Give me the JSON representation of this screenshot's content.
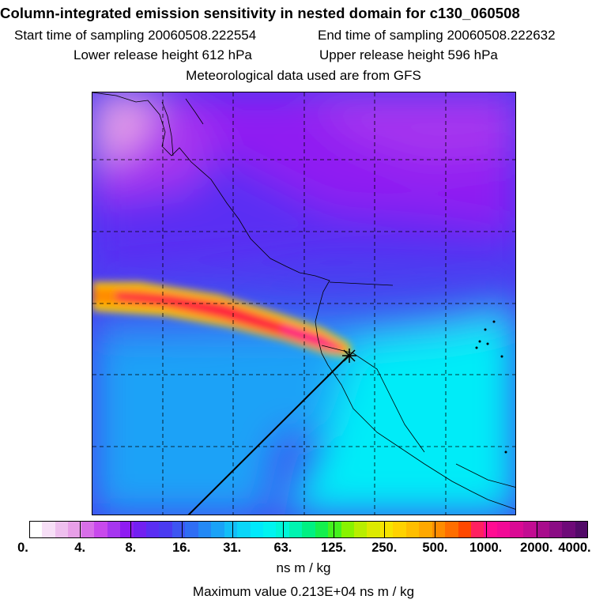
{
  "title": "Column-integrated emission sensitivity in nested domain for c130_060508",
  "sampling": {
    "start": "Start time of sampling 20060508.222554",
    "end": "End time of sampling 20060508.222632"
  },
  "release": {
    "lower": "Lower release height  612 hPa",
    "upper": "Upper release height  596 hPa"
  },
  "met_note": "Meteorological data used are from GFS",
  "colorbar": {
    "tick_labels": [
      "0.",
      "4.",
      "8.",
      "16.",
      "31.",
      "63.",
      "125.",
      "250.",
      "500.",
      "1000.",
      "2000.",
      "4000."
    ],
    "colors": [
      "#ffffff",
      "#f7dff7",
      "#eebfee",
      "#e79fe7",
      "#d86fe8",
      "#c849ec",
      "#a636ef",
      "#8f1cf2",
      "#7220f1",
      "#5a2ef3",
      "#4a3bf0",
      "#3d55f1",
      "#2f6ef4",
      "#2389f6",
      "#1aa2f7",
      "#12bef8",
      "#0ad6f8",
      "#00e9fb",
      "#00f4f0",
      "#00f6d8",
      "#00f4b0",
      "#00f082",
      "#14ef4e",
      "#44f21e",
      "#88f300",
      "#b8ee00",
      "#dcea00",
      "#f6e400",
      "#ffd200",
      "#ffbe00",
      "#ffa800",
      "#ff8c00",
      "#ff6e00",
      "#ff4800",
      "#ff2060",
      "#ff0c92",
      "#f20a96",
      "#da0a94",
      "#c20c92",
      "#a80c8c",
      "#8a0c84",
      "#6e0a78",
      "#520a68"
    ],
    "units": "ns m / kg"
  },
  "maximum": "Maximum value  0.213E+04 ns m / kg",
  "map": {
    "background_color": "#4a3bf0",
    "colors": {
      "cyan": "#00ecf8",
      "light_blue": "#1aa2f7",
      "blue": "#3d55f1",
      "indigo": "#5a2ef3",
      "purple": "#8f1cf2",
      "violet": "#a636ef",
      "pink": "#e79fe7",
      "plume_outer": "#ffd200",
      "plume_mid": "#ff8c00",
      "plume_inner": "#ff2040",
      "plume_core": "#ff0c92"
    },
    "release_marker": "receptor-star-icon"
  }
}
